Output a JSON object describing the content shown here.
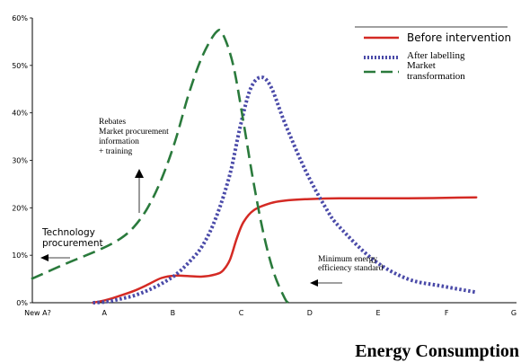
{
  "chart_data": {
    "type": "line",
    "title": "",
    "bottom_caption": "Energy Consumption",
    "xlabel": "",
    "ylabel": "",
    "categories": [
      "New A?",
      "A",
      "B",
      "C",
      "D",
      "E",
      "F",
      "G"
    ],
    "y_ticks": [
      "0%",
      "10%",
      "20%",
      "30%",
      "40%",
      "50%",
      "60%"
    ],
    "ylim": [
      0,
      60
    ],
    "grid": false,
    "legend_position": "top-right",
    "series": [
      {
        "name": "Before intervention",
        "color": "#d42a24",
        "style": "solid",
        "points": [
          [
            0.4,
            0
          ],
          [
            0.6,
            0.6
          ],
          [
            0.8,
            1.5
          ],
          [
            1.0,
            2.5
          ],
          [
            1.2,
            3.8
          ],
          [
            1.4,
            5.2
          ],
          [
            1.6,
            5.7
          ],
          [
            1.8,
            5.6
          ],
          [
            2.0,
            5.5
          ],
          [
            2.2,
            6.0
          ],
          [
            2.3,
            6.8
          ],
          [
            2.4,
            9.0
          ],
          [
            2.5,
            13.5
          ],
          [
            2.6,
            17.0
          ],
          [
            2.75,
            19.5
          ],
          [
            3.0,
            21.0
          ],
          [
            3.2,
            21.5
          ],
          [
            3.5,
            21.8
          ],
          [
            4.0,
            22.0
          ],
          [
            5.0,
            22.0
          ],
          [
            6.0,
            22.2
          ]
        ]
      },
      {
        "name": "After labelling",
        "color": "#4a4aa8",
        "style": "dotted",
        "points": [
          [
            0.4,
            0
          ],
          [
            0.6,
            0.2
          ],
          [
            0.8,
            0.8
          ],
          [
            1.0,
            1.5
          ],
          [
            1.2,
            2.6
          ],
          [
            1.4,
            4.0
          ],
          [
            1.6,
            5.8
          ],
          [
            1.8,
            8.5
          ],
          [
            2.0,
            12.0
          ],
          [
            2.2,
            18.0
          ],
          [
            2.4,
            27.0
          ],
          [
            2.55,
            37.0
          ],
          [
            2.7,
            45.0
          ],
          [
            2.85,
            47.5
          ],
          [
            3.0,
            45.5
          ],
          [
            3.2,
            38.0
          ],
          [
            3.5,
            28.0
          ],
          [
            3.8,
            20.0
          ],
          [
            4.0,
            16.0
          ],
          [
            4.5,
            9.0
          ],
          [
            5.0,
            5.0
          ],
          [
            5.5,
            3.5
          ],
          [
            6.0,
            2.2
          ]
        ]
      },
      {
        "name": "Market transformation",
        "color": "#2a7a3c",
        "style": "dashed",
        "points": [
          [
            -0.5,
            5.0
          ],
          [
            0.0,
            8.2
          ],
          [
            0.5,
            11.2
          ],
          [
            0.8,
            13.5
          ],
          [
            1.0,
            16.0
          ],
          [
            1.2,
            20.0
          ],
          [
            1.4,
            26.0
          ],
          [
            1.6,
            34.0
          ],
          [
            1.8,
            44.0
          ],
          [
            2.0,
            52.0
          ],
          [
            2.2,
            57.0
          ],
          [
            2.3,
            56.5
          ],
          [
            2.45,
            50.0
          ],
          [
            2.6,
            38.0
          ],
          [
            2.75,
            25.0
          ],
          [
            2.9,
            14.0
          ],
          [
            3.05,
            6.0
          ],
          [
            3.2,
            1.0
          ],
          [
            3.25,
            0
          ]
        ]
      }
    ],
    "annotations": {
      "rebates": [
        "Rebates",
        "Market procurement",
        "information",
        "+ training"
      ],
      "technology": [
        "Technology",
        "procurement"
      ],
      "minimum": [
        "Minimum energy",
        "efficiency standard"
      ]
    },
    "legend_labels": {
      "before": "Before intervention",
      "after": "After labelling",
      "market": [
        "Market",
        "transformation"
      ]
    }
  }
}
